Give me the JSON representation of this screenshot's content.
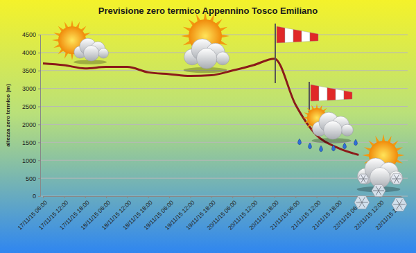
{
  "chart_data": {
    "type": "line",
    "title": "Previsione zero termico Appennino Tosco Emiliano",
    "ylabel": "altezza zero termico (m)",
    "categories": [
      "17/11/15 06:00",
      "17/11/15 12:00",
      "17/11/15 18:00",
      "18/11/15 06:00",
      "18/11/15 12:00",
      "18/11/15 18:00",
      "19/11/15 06:00",
      "19/11/15 12:00",
      "19/11/15 18:00",
      "20/11/15 06:00",
      "20/11/15 12:00",
      "20/11/15 18:00",
      "21/11/15 06:00",
      "21/11/15 12:00",
      "21/11/15 18:00",
      "22/11/15 06:00",
      "22/11/15 12:00",
      "22/11/15 18:00"
    ],
    "values": [
      3700,
      3650,
      3560,
      3600,
      3600,
      3450,
      3400,
      3350,
      3370,
      3500,
      3650,
      3830,
      2550,
      1700,
      1350,
      1150,
      null,
      null
    ],
    "color": "#8b1a1a",
    "ylim": [
      0,
      4500
    ],
    "yticks": [
      0,
      500,
      1000,
      1500,
      2000,
      2500,
      3000,
      3500,
      4000,
      4500
    ],
    "grid": true
  }
}
